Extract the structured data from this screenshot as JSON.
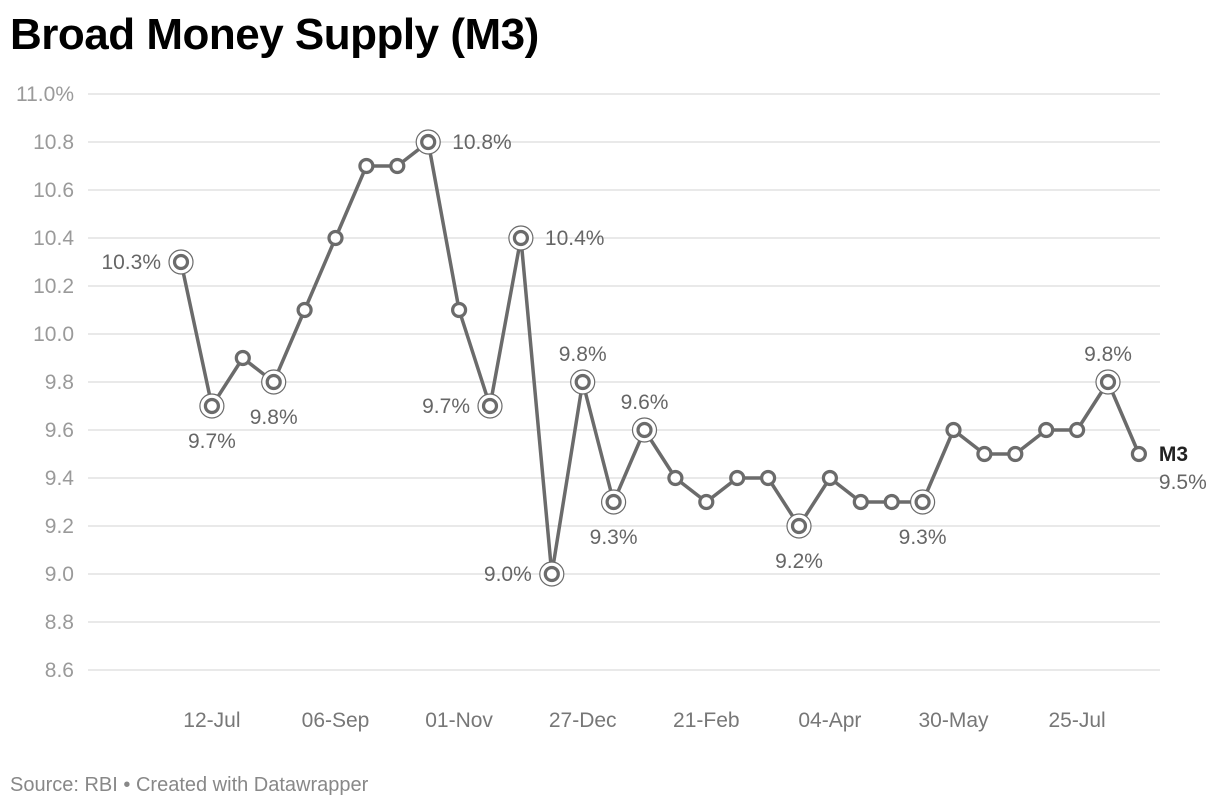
{
  "title": "Broad Money Supply (M3)",
  "footer": {
    "source": "Source: RBI",
    "separator": "•",
    "credit": "Created with Datawrapper"
  },
  "colors": {
    "line": "#6b6b6b",
    "grid": "#e2e2e2",
    "tick_text": "#9a9a9a",
    "annotation_text": "#666666"
  },
  "chart_data": {
    "type": "line",
    "title": "Broad Money Supply (M3)",
    "xlabel": "",
    "ylabel": "",
    "ylim": [
      8.6,
      11.0
    ],
    "y_ticks": [
      "11.0%",
      "10.8",
      "10.6",
      "10.4",
      "10.2",
      "10.0",
      "9.8",
      "9.6",
      "9.4",
      "9.2",
      "9.0",
      "8.8",
      "8.6"
    ],
    "x_tick_labels": [
      "12-Jul",
      "06-Sep",
      "01-Nov",
      "27-Dec",
      "21-Feb",
      "04-Apr",
      "30-May",
      "25-Jul"
    ],
    "x_tick_indices": [
      1,
      5,
      9,
      13,
      17,
      21,
      25,
      29
    ],
    "grid": true,
    "series": [
      {
        "name": "M3",
        "last_value_label": "9.5%",
        "values": [
          10.3,
          9.7,
          9.9,
          9.8,
          10.1,
          10.4,
          10.7,
          10.7,
          10.8,
          10.1,
          9.7,
          10.4,
          9.0,
          9.8,
          9.3,
          9.6,
          9.4,
          9.3,
          9.4,
          9.4,
          9.2,
          9.4,
          9.3,
          9.3,
          9.3,
          9.6,
          9.5,
          9.5,
          9.6,
          9.6,
          9.8,
          9.5
        ]
      }
    ],
    "annotations": [
      {
        "index": 0,
        "text": "10.3%",
        "pos": "left"
      },
      {
        "index": 1,
        "text": "9.7%",
        "pos": "below"
      },
      {
        "index": 3,
        "text": "9.8%",
        "pos": "below"
      },
      {
        "index": 8,
        "text": "10.8%",
        "pos": "right"
      },
      {
        "index": 10,
        "text": "9.7%",
        "pos": "left"
      },
      {
        "index": 11,
        "text": "10.4%",
        "pos": "right"
      },
      {
        "index": 12,
        "text": "9.0%",
        "pos": "left"
      },
      {
        "index": 13,
        "text": "9.8%",
        "pos": "above"
      },
      {
        "index": 14,
        "text": "9.3%",
        "pos": "below"
      },
      {
        "index": 15,
        "text": "9.6%",
        "pos": "above"
      },
      {
        "index": 20,
        "text": "9.2%",
        "pos": "below"
      },
      {
        "index": 24,
        "text": "9.3%",
        "pos": "below"
      },
      {
        "index": 30,
        "text": "9.8%",
        "pos": "above"
      }
    ]
  }
}
